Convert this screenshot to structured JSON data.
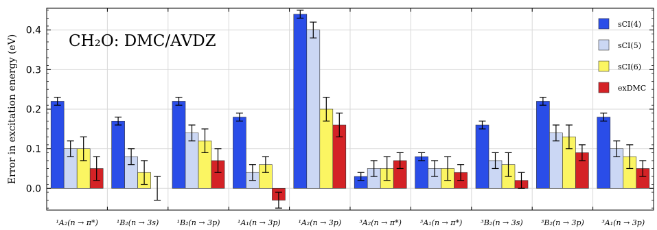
{
  "chart_data": {
    "type": "bar",
    "title": "CH₂O: DMC/AVDZ",
    "ylabel": "Error in excitation energy (eV)",
    "xlabel": "",
    "ylim": [
      -0.055,
      0.455
    ],
    "yticks": [
      0.0,
      0.1,
      0.2,
      0.3,
      0.4
    ],
    "ytick_labels": [
      "0.0",
      "0.1",
      "0.2",
      "0.3",
      "0.4"
    ],
    "grid": true,
    "legend_position": "top-right",
    "categories": [
      "¹A₂(n → π*)",
      "¹B₂(n → 3s)",
      "¹B₂(n → 3p)",
      "¹A₁(n → 3p)",
      "¹A₂(n → 3p)",
      "³A₂(n → π*)",
      "³A₁(n → π*)",
      "³B₂(n → 3s)",
      "³B₂(n → 3p)",
      "³A₁(n → 3p)"
    ],
    "series": [
      {
        "name": "sCI(4)",
        "color": "#2a4de8",
        "values": [
          0.22,
          0.17,
          0.22,
          0.18,
          0.44,
          0.03,
          0.08,
          0.16,
          0.22,
          0.18
        ],
        "errors": [
          0.01,
          0.01,
          0.01,
          0.01,
          0.01,
          0.01,
          0.01,
          0.01,
          0.01,
          0.01
        ]
      },
      {
        "name": "sCI(5)",
        "color": "#cbd7f4",
        "values": [
          0.1,
          0.08,
          0.14,
          0.04,
          0.4,
          0.05,
          0.05,
          0.07,
          0.14,
          0.1
        ],
        "errors": [
          0.02,
          0.02,
          0.02,
          0.02,
          0.02,
          0.02,
          0.02,
          0.02,
          0.02,
          0.02
        ]
      },
      {
        "name": "sCI(6)",
        "color": "#fbf562",
        "values": [
          0.1,
          0.04,
          0.12,
          0.06,
          0.2,
          0.05,
          0.05,
          0.06,
          0.13,
          0.08
        ],
        "errors": [
          0.03,
          0.03,
          0.03,
          0.02,
          0.03,
          0.03,
          0.03,
          0.03,
          0.03,
          0.03
        ]
      },
      {
        "name": "exDMC",
        "color": "#d42226",
        "values": [
          0.05,
          0.0,
          0.07,
          -0.03,
          0.16,
          0.07,
          0.04,
          0.02,
          0.09,
          0.05
        ],
        "errors": [
          0.03,
          0.03,
          0.03,
          0.02,
          0.03,
          0.02,
          0.02,
          0.02,
          0.02,
          0.02
        ]
      }
    ]
  }
}
